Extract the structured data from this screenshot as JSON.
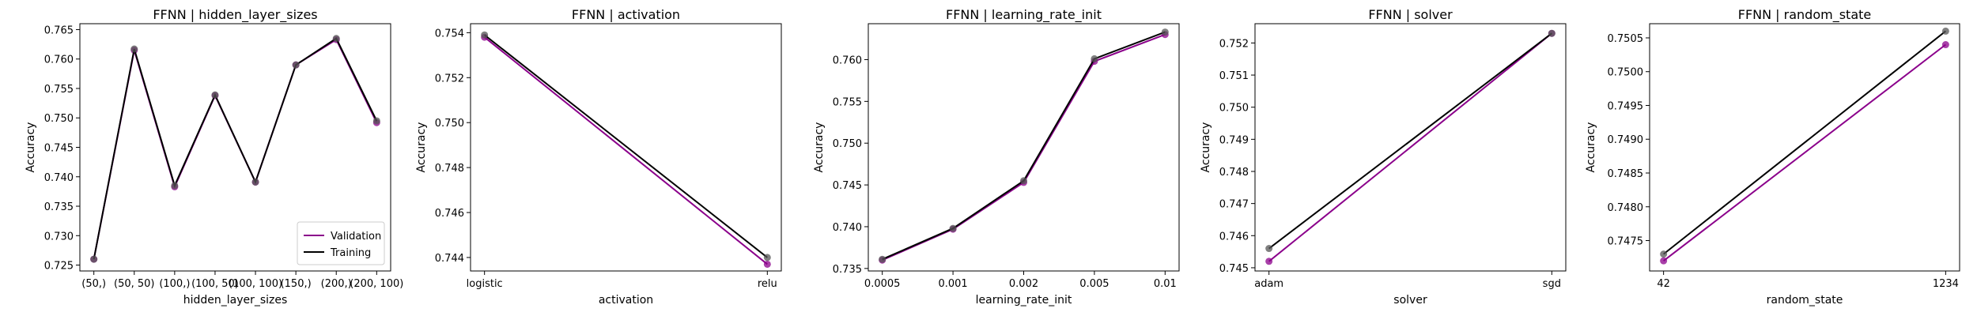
{
  "colors": {
    "validation": "#8b008b",
    "training": "#000000",
    "marker": "#555555"
  },
  "chart_data": [
    {
      "type": "line",
      "title": "FFNN | hidden_layer_sizes",
      "xlabel": "hidden_layer_sizes",
      "ylabel": "Accuracy",
      "categories": [
        "(50,)",
        "(50, 50)",
        "(100,)",
        "(100, 50)",
        "(100, 100)",
        "(150,)",
        "(200,)",
        "(200, 100)"
      ],
      "ylim": [
        0.724,
        0.766
      ],
      "yticks": [
        "0.725",
        "0.730",
        "0.735",
        "0.740",
        "0.745",
        "0.750",
        "0.755",
        "0.760",
        "0.765"
      ],
      "series": [
        {
          "name": "Validation",
          "values": [
            0.726,
            0.7615,
            0.7383,
            0.7538,
            0.7391,
            0.759,
            0.7633,
            0.7492
          ]
        },
        {
          "name": "Training",
          "values": [
            0.726,
            0.7617,
            0.7385,
            0.7539,
            0.7391,
            0.759,
            0.7635,
            0.7495
          ]
        }
      ],
      "legend": {
        "position": "lower-right",
        "entries": [
          "Validation",
          "Training"
        ]
      }
    },
    {
      "type": "line",
      "title": "FFNN | activation",
      "xlabel": "activation",
      "ylabel": "Accuracy",
      "categories": [
        "logistic",
        "relu"
      ],
      "ylim": [
        0.7434,
        0.7544
      ],
      "yticks": [
        "0.744",
        "0.746",
        "0.748",
        "0.750",
        "0.752",
        "0.754"
      ],
      "series": [
        {
          "name": "Validation",
          "values": [
            0.7538,
            0.7437
          ]
        },
        {
          "name": "Training",
          "values": [
            0.7539,
            0.744
          ]
        }
      ]
    },
    {
      "type": "line",
      "title": "FFNN | learning_rate_init",
      "xlabel": "learning_rate_init",
      "ylabel": "Accuracy",
      "categories": [
        "0.0005",
        "0.001",
        "0.002",
        "0.005",
        "0.01"
      ],
      "ylim": [
        0.7347,
        0.7643
      ],
      "yticks": [
        "0.735",
        "0.740",
        "0.745",
        "0.750",
        "0.755",
        "0.760"
      ],
      "series": [
        {
          "name": "Validation",
          "values": [
            0.736,
            0.7397,
            0.7453,
            0.7598,
            0.763
          ]
        },
        {
          "name": "Training",
          "values": [
            0.7361,
            0.7398,
            0.7455,
            0.7601,
            0.7633
          ]
        }
      ]
    },
    {
      "type": "line",
      "title": "FFNN | solver",
      "xlabel": "solver",
      "ylabel": "Accuracy",
      "categories": [
        "adam",
        "sgd"
      ],
      "ylim": [
        0.7449,
        0.7526
      ],
      "yticks": [
        "0.745",
        "0.746",
        "0.747",
        "0.748",
        "0.749",
        "0.750",
        "0.751",
        "0.752"
      ],
      "series": [
        {
          "name": "Validation",
          "values": [
            0.7452,
            0.7523
          ]
        },
        {
          "name": "Training",
          "values": [
            0.7456,
            0.7523
          ]
        }
      ]
    },
    {
      "type": "line",
      "title": "FFNN | random_state",
      "xlabel": "random_state",
      "ylabel": "Accuracy",
      "categories": [
        "42",
        "1234"
      ],
      "ylim": [
        0.74705,
        0.75071
      ],
      "yticks": [
        "0.7475",
        "0.7480",
        "0.7485",
        "0.7490",
        "0.7495",
        "0.7500",
        "0.7505"
      ],
      "series": [
        {
          "name": "Validation",
          "values": [
            0.7472,
            0.7504
          ]
        },
        {
          "name": "Training",
          "values": [
            0.7473,
            0.7506
          ]
        }
      ]
    }
  ]
}
